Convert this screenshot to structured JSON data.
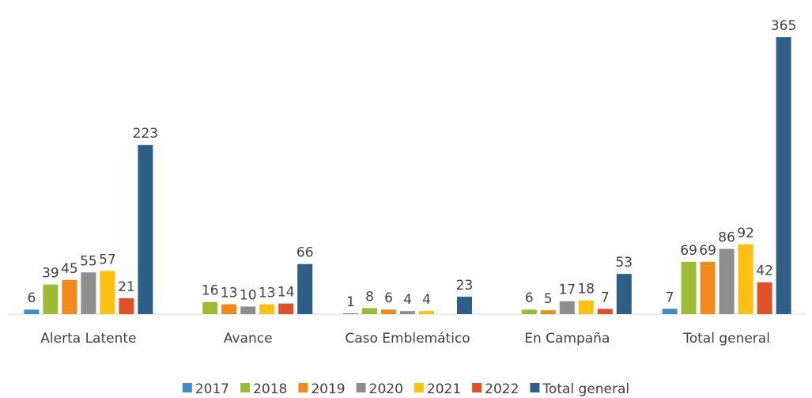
{
  "chart_data": {
    "type": "bar",
    "categories": [
      "Alerta Latente",
      "Avance",
      "Caso Emblemático",
      "En Campaña",
      "Total general"
    ],
    "series": [
      {
        "name": "2017",
        "color": "#3f8dc6",
        "values": [
          6,
          null,
          1,
          null,
          7
        ]
      },
      {
        "name": "2018",
        "color": "#9bbb35",
        "values": [
          39,
          16,
          8,
          6,
          69
        ]
      },
      {
        "name": "2019",
        "color": "#f08a1d",
        "values": [
          45,
          13,
          6,
          5,
          69
        ]
      },
      {
        "name": "2020",
        "color": "#8e8e8e",
        "values": [
          55,
          10,
          4,
          17,
          86
        ]
      },
      {
        "name": "2021",
        "color": "#fdc012",
        "values": [
          57,
          13,
          4,
          18,
          92
        ]
      },
      {
        "name": "2022",
        "color": "#e0512a",
        "values": [
          21,
          14,
          null,
          7,
          42
        ]
      },
      {
        "name": "Total general",
        "color": "#2e5f86",
        "values": [
          223,
          66,
          23,
          53,
          365
        ]
      }
    ],
    "legend": "bottom"
  }
}
